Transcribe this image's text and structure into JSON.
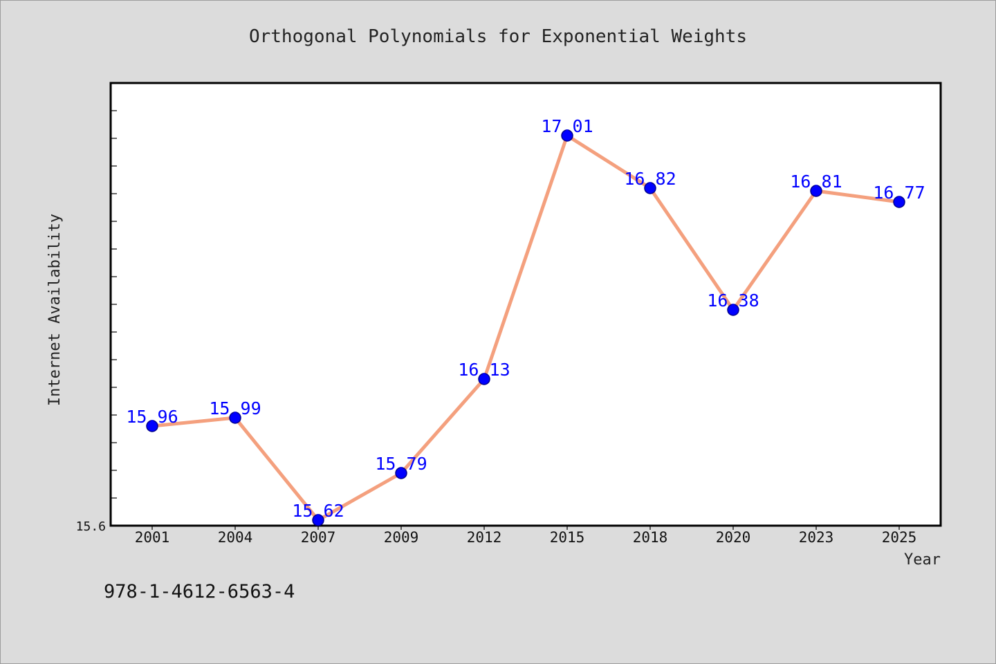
{
  "chart_data": {
    "type": "line",
    "title": "Orthogonal Polynomials for Exponential Weights",
    "xlabel": "Year",
    "ylabel": "Internet Availability",
    "categories": [
      "2001",
      "2004",
      "2007",
      "2009",
      "2012",
      "2015",
      "2018",
      "2020",
      "2023",
      "2025"
    ],
    "values": [
      15.96,
      15.99,
      15.62,
      15.79,
      16.13,
      17.01,
      16.82,
      16.38,
      16.81,
      16.77
    ],
    "ylim": [
      15.6,
      17.2
    ],
    "yticks": [
      15.6
    ],
    "grid": false,
    "legend": "none",
    "data_labels": "shown above each point",
    "colors": {
      "background": "#dcdcdc",
      "plot_background": "#ffffff",
      "line": "#f4a07e",
      "marker": "#0000ff",
      "data_label": "#0000ff"
    }
  },
  "footer": {
    "text": "978-1-4612-6563-4"
  }
}
